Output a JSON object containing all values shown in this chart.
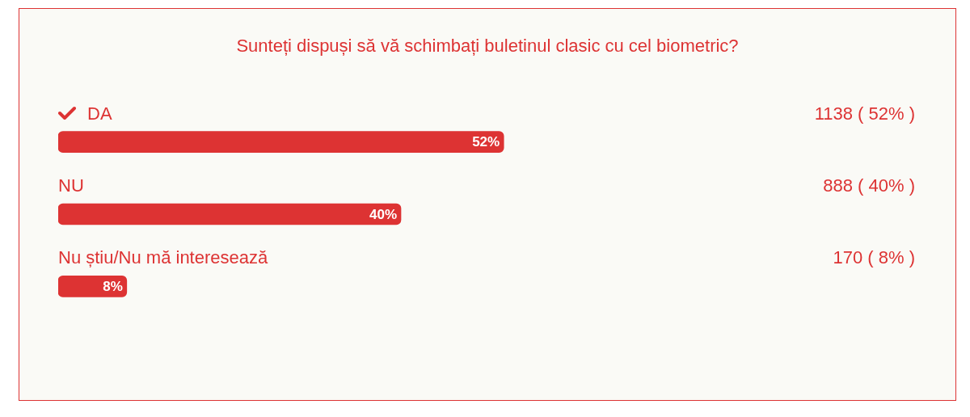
{
  "chart_data": {
    "type": "bar",
    "orientation": "horizontal",
    "title": "Sunteți dispuși să vă schimbați buletinul clasic cu cel biometric?",
    "categories": [
      "DA",
      "NU",
      "Nu știu/Nu mă interesează"
    ],
    "values": [
      52,
      40,
      8
    ],
    "value_labels": [
      "52%",
      "40%",
      "8%"
    ],
    "color": "#dd3333",
    "tick_labels": false,
    "grid": false,
    "legend": false,
    "annotations": [
      "1138 ( 52% )",
      "888 ( 40% )",
      "170 ( 8% )"
    ]
  }
}
